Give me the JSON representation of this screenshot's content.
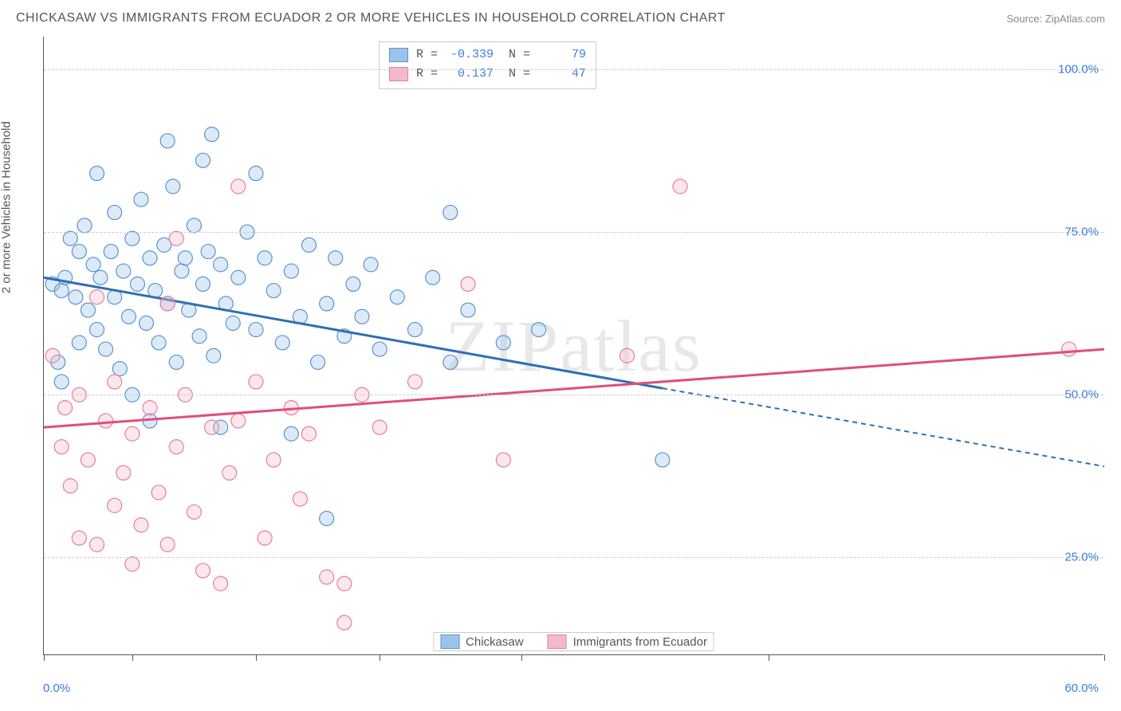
{
  "header": {
    "title": "CHICKASAW VS IMMIGRANTS FROM ECUADOR 2 OR MORE VEHICLES IN HOUSEHOLD CORRELATION CHART",
    "source": "Source: ZipAtlas.com"
  },
  "chart": {
    "type": "scatter",
    "ylabel": "2 or more Vehicles in Household",
    "xlim": [
      0,
      60
    ],
    "ylim": [
      10,
      105
    ],
    "ytick_values": [
      25,
      50,
      75,
      100
    ],
    "ytick_labels": [
      "25.0%",
      "50.0%",
      "75.0%",
      "100.0%"
    ],
    "xtick_values": [
      0,
      5,
      12,
      19,
      27,
      41,
      60
    ],
    "xaxis_min_label": "0.0%",
    "xaxis_max_label": "60.0%",
    "point_radius": 9,
    "background_color": "#ffffff",
    "grid_color": "#cccccc",
    "axis_color": "#555555",
    "tick_label_color": "#3b7dd8",
    "label_fontsize": 15,
    "title_fontsize": 16,
    "watermark": "ZIPatlas",
    "series": [
      {
        "name": "Chickasaw",
        "fill": "#9cc4ea",
        "stroke": "#5a94cf",
        "line_color": "#2f6fb3",
        "line_width": 3,
        "R": "-0.339",
        "N": "79",
        "trend": {
          "x1": 0,
          "y1": 68,
          "x2": 35,
          "y2": 51,
          "x2_dash_end": 60,
          "y2_dash_end": 39
        },
        "points": [
          [
            0.5,
            67
          ],
          [
            0.8,
            55
          ],
          [
            1,
            66
          ],
          [
            1,
            52
          ],
          [
            1.2,
            68
          ],
          [
            1.5,
            74
          ],
          [
            1.8,
            65
          ],
          [
            2,
            72
          ],
          [
            2,
            58
          ],
          [
            2.3,
            76
          ],
          [
            2.5,
            63
          ],
          [
            2.8,
            70
          ],
          [
            3,
            60
          ],
          [
            3,
            84
          ],
          [
            3.2,
            68
          ],
          [
            3.5,
            57
          ],
          [
            3.8,
            72
          ],
          [
            4,
            65
          ],
          [
            4,
            78
          ],
          [
            4.3,
            54
          ],
          [
            4.5,
            69
          ],
          [
            4.8,
            62
          ],
          [
            5,
            74
          ],
          [
            5,
            50
          ],
          [
            5.3,
            67
          ],
          [
            5.5,
            80
          ],
          [
            5.8,
            61
          ],
          [
            6,
            71
          ],
          [
            6,
            46
          ],
          [
            6.3,
            66
          ],
          [
            6.5,
            58
          ],
          [
            6.8,
            73
          ],
          [
            7,
            64
          ],
          [
            7.3,
            82
          ],
          [
            7.5,
            55
          ],
          [
            7.8,
            69
          ],
          [
            7,
            89
          ],
          [
            8,
            71
          ],
          [
            8.2,
            63
          ],
          [
            8.5,
            76
          ],
          [
            8.8,
            59
          ],
          [
            9,
            67
          ],
          [
            9.3,
            72
          ],
          [
            9,
            86
          ],
          [
            9.6,
            56
          ],
          [
            10,
            70
          ],
          [
            10.3,
            64
          ],
          [
            10.7,
            61
          ],
          [
            9.5,
            90
          ],
          [
            11,
            68
          ],
          [
            11.5,
            75
          ],
          [
            12,
            60
          ],
          [
            12.5,
            71
          ],
          [
            13,
            66
          ],
          [
            12,
            84
          ],
          [
            13.5,
            58
          ],
          [
            14,
            69
          ],
          [
            14.5,
            62
          ],
          [
            15,
            73
          ],
          [
            15.5,
            55
          ],
          [
            16,
            64
          ],
          [
            16.5,
            71
          ],
          [
            17,
            59
          ],
          [
            17.5,
            67
          ],
          [
            18,
            62
          ],
          [
            18.5,
            70
          ],
          [
            19,
            57
          ],
          [
            20,
            65
          ],
          [
            21,
            60
          ],
          [
            22,
            68
          ],
          [
            23,
            78
          ],
          [
            24,
            63
          ],
          [
            23,
            55
          ],
          [
            16,
            31
          ],
          [
            26,
            58
          ],
          [
            28,
            60
          ],
          [
            35,
            40
          ],
          [
            14,
            44
          ],
          [
            10,
            45
          ]
        ]
      },
      {
        "name": "Immigrants from Ecuador",
        "fill": "#f4b9c8",
        "stroke": "#e57f9d",
        "line_color": "#e04e7b",
        "line_width": 3,
        "R": "0.137",
        "N": "47",
        "trend": {
          "x1": 0,
          "y1": 45,
          "x2": 60,
          "y2": 57
        },
        "points": [
          [
            0.5,
            56
          ],
          [
            1,
            42
          ],
          [
            1.2,
            48
          ],
          [
            1.5,
            36
          ],
          [
            2,
            28
          ],
          [
            2,
            50
          ],
          [
            2.5,
            40
          ],
          [
            3,
            27
          ],
          [
            3.5,
            46
          ],
          [
            4,
            33
          ],
          [
            4,
            52
          ],
          [
            4.5,
            38
          ],
          [
            5,
            44
          ],
          [
            5,
            24
          ],
          [
            5.5,
            30
          ],
          [
            6,
            48
          ],
          [
            6.5,
            35
          ],
          [
            7,
            27
          ],
          [
            7.5,
            74
          ],
          [
            7.5,
            42
          ],
          [
            8,
            50
          ],
          [
            8.5,
            32
          ],
          [
            9,
            23
          ],
          [
            9.5,
            45
          ],
          [
            10,
            21
          ],
          [
            10.5,
            38
          ],
          [
            11,
            46
          ],
          [
            7,
            64
          ],
          [
            12,
            52
          ],
          [
            12.5,
            28
          ],
          [
            13,
            40
          ],
          [
            11,
            82
          ],
          [
            14,
            48
          ],
          [
            14.5,
            34
          ],
          [
            15,
            44
          ],
          [
            16,
            22
          ],
          [
            17,
            15
          ],
          [
            18,
            50
          ],
          [
            17,
            21
          ],
          [
            19,
            45
          ],
          [
            21,
            52
          ],
          [
            24,
            67
          ],
          [
            26,
            40
          ],
          [
            33,
            56
          ],
          [
            36,
            82
          ],
          [
            58,
            57
          ],
          [
            3,
            65
          ]
        ]
      }
    ],
    "stats_box": {
      "border_color": "#cccccc",
      "font": "monospace"
    },
    "bottom_legend": {
      "items": [
        "Chickasaw",
        "Immigrants from Ecuador"
      ]
    }
  }
}
